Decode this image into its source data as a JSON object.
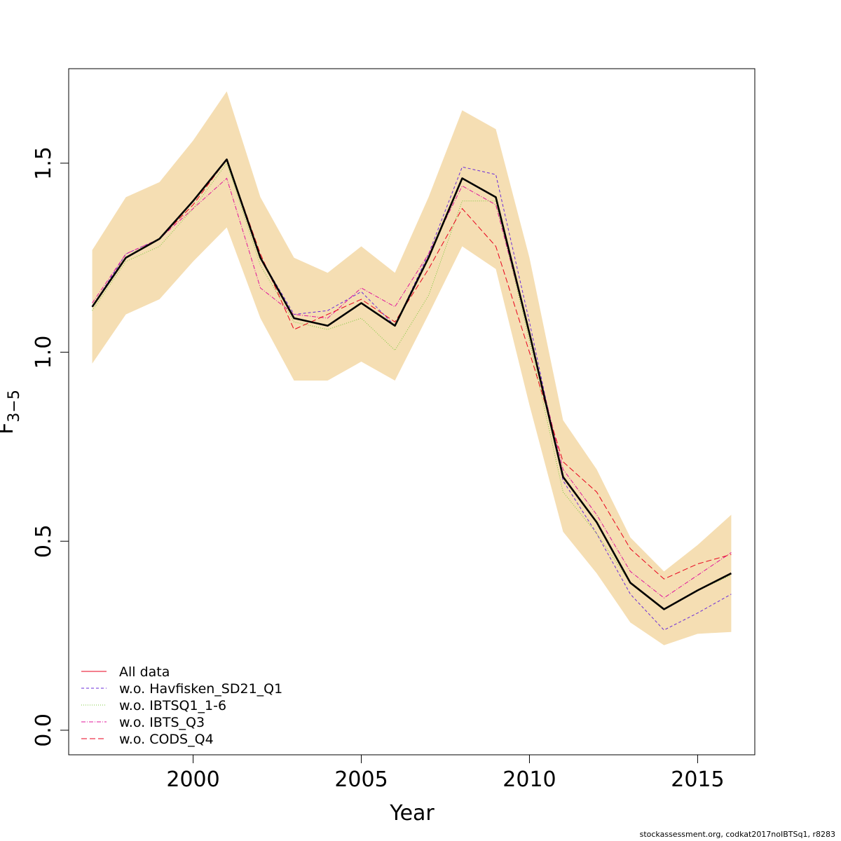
{
  "chart_data": {
    "type": "line",
    "xlabel": "Year",
    "ylabel": "F",
    "ylabel_subscript": "3−5",
    "xlim": [
      1996.3,
      2016.7
    ],
    "ylim": [
      -0.065,
      1.75
    ],
    "x_ticks": [
      2000,
      2005,
      2010,
      2015
    ],
    "y_ticks": [
      0.0,
      0.5,
      1.0,
      1.5
    ],
    "y_tick_labels": [
      "0.0",
      "0.5",
      "1.0",
      "1.5"
    ],
    "x": [
      1997,
      1998,
      1999,
      2000,
      2001,
      2002,
      2003,
      2004,
      2005,
      2006,
      2007,
      2008,
      2009,
      2010,
      2011,
      2012,
      2013,
      2014,
      2015,
      2016
    ],
    "estimate": [
      1.12,
      1.25,
      1.3,
      1.4,
      1.51,
      1.25,
      1.09,
      1.07,
      1.13,
      1.07,
      1.25,
      1.46,
      1.41,
      1.05,
      0.67,
      0.55,
      0.39,
      0.32,
      0.37,
      0.415
    ],
    "confidence_band": {
      "upper": [
        1.27,
        1.41,
        1.45,
        1.56,
        1.69,
        1.41,
        1.25,
        1.21,
        1.28,
        1.21,
        1.41,
        1.64,
        1.59,
        1.25,
        0.82,
        0.69,
        0.51,
        0.42,
        0.49,
        0.57
      ],
      "lower": [
        0.97,
        1.1,
        1.14,
        1.24,
        1.33,
        1.09,
        0.925,
        0.925,
        0.975,
        0.925,
        1.1,
        1.28,
        1.22,
        0.86,
        0.525,
        0.415,
        0.285,
        0.225,
        0.255,
        0.26
      ],
      "color": "#f5deb3"
    },
    "series": [
      {
        "name": "All data",
        "color": "#e8001c",
        "dash": "",
        "values": [
          1.12,
          1.25,
          1.3,
          1.4,
          1.51,
          1.25,
          1.09,
          1.07,
          1.13,
          1.07,
          1.25,
          1.46,
          1.41,
          1.05,
          0.67,
          0.55,
          0.39,
          0.32,
          0.37,
          0.415
        ]
      },
      {
        "name": "w.o. Havfisken_SD21_Q1",
        "color": "#6a2bd9",
        "dash": "4,3",
        "values": [
          1.12,
          1.26,
          1.3,
          1.4,
          1.51,
          1.25,
          1.1,
          1.11,
          1.16,
          1.07,
          1.26,
          1.49,
          1.47,
          1.08,
          0.66,
          0.52,
          0.36,
          0.265,
          0.31,
          0.36
        ]
      },
      {
        "name": "w.o. IBTSQ1_1-6",
        "color": "#7ec83d",
        "dash": "1,2",
        "values": [
          1.11,
          1.24,
          1.28,
          1.38,
          1.5,
          1.23,
          1.08,
          1.06,
          1.09,
          1.005,
          1.15,
          1.4,
          1.4,
          1.03,
          0.63,
          0.52,
          0.39,
          0.32,
          0.37,
          0.41
        ]
      },
      {
        "name": "w.o. IBTS_Q3",
        "color": "#e0149b",
        "dash": "6,2,1,2",
        "values": [
          1.13,
          1.26,
          1.3,
          1.38,
          1.46,
          1.17,
          1.1,
          1.09,
          1.17,
          1.12,
          1.26,
          1.44,
          1.39,
          1.05,
          0.69,
          0.57,
          0.42,
          0.35,
          0.41,
          0.47
        ]
      },
      {
        "name": "w.o. CODS_Q4",
        "color": "#e8001c",
        "dash": "8,4",
        "values": [
          1.12,
          1.25,
          1.3,
          1.39,
          1.51,
          1.26,
          1.06,
          1.1,
          1.14,
          1.08,
          1.22,
          1.38,
          1.28,
          1.0,
          0.71,
          0.63,
          0.48,
          0.4,
          0.44,
          0.465
        ]
      }
    ],
    "legend_position": "bottom-left",
    "grid": false
  },
  "credit": "stockassessment.org, codkat2017noIBTSq1, r8283"
}
